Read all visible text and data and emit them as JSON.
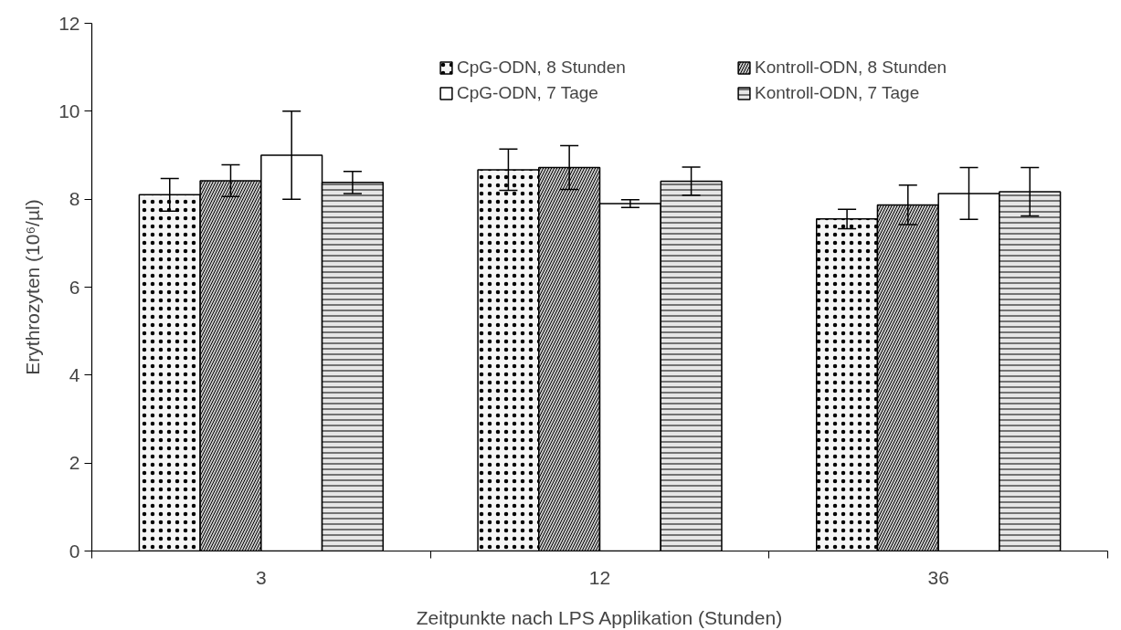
{
  "chart_data": {
    "type": "bar",
    "xlabel": "Zeitpunkte nach LPS Applikation (Stunden)",
    "ylabel": "Erythrozyten (10⁶/µl)",
    "categories": [
      "3",
      "12",
      "36"
    ],
    "series": [
      {
        "name": "CpG-ODN, 8 Stunden",
        "color": "#f5f5f5",
        "values": [
          8.1,
          8.67,
          7.55
        ],
        "errors": [
          0.37,
          0.47,
          0.22
        ]
      },
      {
        "name": "Kontroll-ODN, 8 Stunden",
        "color": "#c8c8c8",
        "values": [
          8.42,
          8.72,
          7.87
        ],
        "errors": [
          0.36,
          0.5,
          0.45
        ]
      },
      {
        "name": "CpG-ODN, 7 Tage",
        "color": "#ffffff",
        "values": [
          9.0,
          7.9,
          8.13
        ],
        "errors": [
          1.0,
          0.09,
          0.59
        ]
      },
      {
        "name": "Kontroll-ODN, 7 Tage",
        "color": "#e6e6e6",
        "values": [
          8.38,
          8.41,
          8.17
        ],
        "errors": [
          0.25,
          0.32,
          0.55
        ]
      }
    ],
    "ylim": [
      0,
      12
    ],
    "yticks": [
      0,
      2,
      4,
      6,
      8,
      10,
      12
    ],
    "grid": false,
    "legend": "top"
  }
}
